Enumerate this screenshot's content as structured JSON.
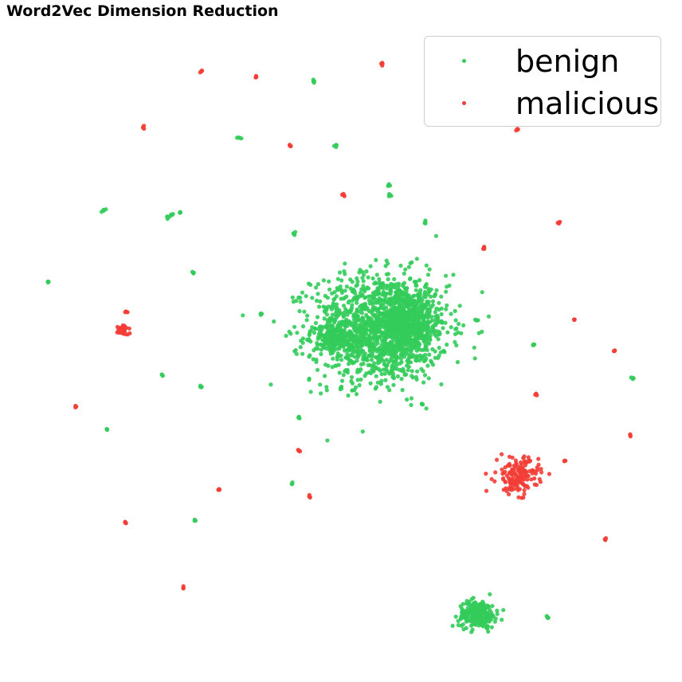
{
  "chart_data": {
    "type": "scatter",
    "title": "Word2Vec Dimension Reduction",
    "xlabel": "",
    "ylabel": "",
    "axes_visible": false,
    "grid": false,
    "xlim": [
      0,
      100
    ],
    "ylim": [
      0,
      100
    ],
    "legend_position": "top-right",
    "series": [
      {
        "name": "benign",
        "color": "#33cc5a",
        "points": [
          [
            45.8,
            90.0
          ],
          [
            34.4,
            81.2
          ],
          [
            49.2,
            80.1
          ],
          [
            13.4,
            70.0
          ],
          [
            23.4,
            69.1
          ],
          [
            24.0,
            69.5
          ],
          [
            25.2,
            69.8
          ],
          [
            42.8,
            66.5
          ],
          [
            57.5,
            72.4
          ],
          [
            57.3,
            74.0
          ],
          [
            62.9,
            68.2
          ],
          [
            5.0,
            59.1
          ],
          [
            27.3,
            60.5
          ],
          [
            37.7,
            54.0
          ],
          [
            70.8,
            53.2
          ],
          [
            79.6,
            49.4
          ],
          [
            94.8,
            44.2
          ],
          [
            22.5,
            44.7
          ],
          [
            28.4,
            43.0
          ],
          [
            14.0,
            36.4
          ],
          [
            43.5,
            38.3
          ],
          [
            50.0,
            42.8
          ],
          [
            62.5,
            40.2
          ],
          [
            42.5,
            28.0
          ],
          [
            27.5,
            22.4
          ],
          [
            81.9,
            7.5
          ]
        ],
        "clusters": [
          {
            "center": [
              56.0,
              52.0
            ],
            "spread": [
              9.5,
              7.5
            ],
            "points": 1400
          },
          {
            "center": [
              60.5,
              53.0
            ],
            "spread": [
              3.2,
              4.2
            ],
            "points": 500
          },
          {
            "center": [
              49.5,
              50.5
            ],
            "spread": [
              2.5,
              1.8
            ],
            "points": 150
          },
          {
            "center": [
              71.0,
              8.0
            ],
            "spread": [
              2.6,
              1.9
            ],
            "points": 250
          }
        ]
      },
      {
        "name": "malicious",
        "color": "#f33d35",
        "points": [
          [
            28.5,
            91.5
          ],
          [
            37.0,
            90.8
          ],
          [
            56.3,
            92.6
          ],
          [
            77.2,
            82.5
          ],
          [
            19.6,
            82.9
          ],
          [
            42.2,
            80.0
          ],
          [
            50.5,
            72.4
          ],
          [
            83.6,
            68.2
          ],
          [
            72.0,
            64.4
          ],
          [
            85.9,
            53.3
          ],
          [
            92.0,
            48.5
          ],
          [
            80.0,
            41.8
          ],
          [
            9.2,
            39.9
          ],
          [
            16.9,
            54.5
          ],
          [
            94.5,
            35.5
          ],
          [
            84.4,
            31.5
          ],
          [
            43.5,
            33.1
          ],
          [
            31.2,
            27.1
          ],
          [
            45.1,
            26.0
          ],
          [
            16.8,
            22.0
          ],
          [
            90.7,
            19.5
          ],
          [
            25.8,
            12.1
          ]
        ],
        "clusters": [
          {
            "center": [
              16.4,
              51.7
            ],
            "spread": [
              0.8,
              0.7
            ],
            "points": 40
          },
          {
            "center": [
              77.2,
              29.3
            ],
            "spread": [
              2.9,
              2.5
            ],
            "points": 160
          }
        ]
      }
    ]
  }
}
